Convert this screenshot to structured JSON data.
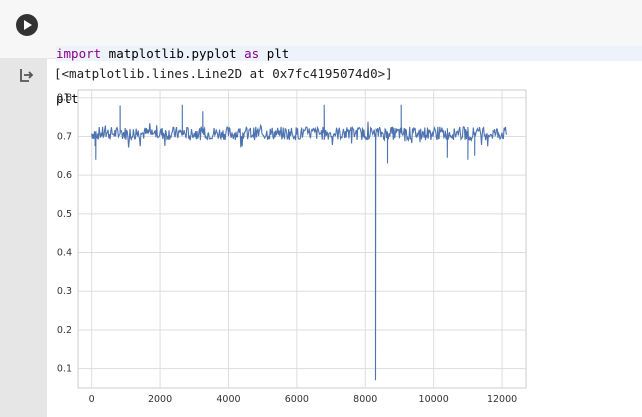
{
  "cell": {
    "code_lines": [
      {
        "kw1": "import",
        "mid": " matplotlib.pyplot ",
        "kw2": "as",
        "end": " plt"
      },
      {
        "text": "plt.plot(act)"
      }
    ],
    "output_text": "[<matplotlib.lines.Line2D at 0x7fc4195074d0>]"
  },
  "icons": {
    "run": "play-icon",
    "output": "output-arrow-icon"
  },
  "chart_data": {
    "type": "line",
    "title": "",
    "xlabel": "",
    "ylabel": "",
    "xlim": [
      -400,
      12700
    ],
    "ylim": [
      0.05,
      0.82
    ],
    "xticks": [
      0,
      2000,
      4000,
      6000,
      8000,
      10000,
      12000
    ],
    "yticks": [
      0.1,
      0.2,
      0.3,
      0.4,
      0.5,
      0.6,
      0.7,
      0.8
    ],
    "grid": true,
    "series": [
      {
        "color": "#4c72b0",
        "baseline": 0.708,
        "x_range": [
          0,
          12150
        ],
        "spikes": [
          {
            "x": 100,
            "y": 0.675
          },
          {
            "x": 120,
            "y": 0.64
          },
          {
            "x": 830,
            "y": 0.78
          },
          {
            "x": 2650,
            "y": 0.782
          },
          {
            "x": 3250,
            "y": 0.765
          },
          {
            "x": 6800,
            "y": 0.782
          },
          {
            "x": 8300,
            "y": 0.07
          },
          {
            "x": 8650,
            "y": 0.63
          },
          {
            "x": 9050,
            "y": 0.782
          },
          {
            "x": 10400,
            "y": 0.645
          },
          {
            "x": 11000,
            "y": 0.64
          },
          {
            "x": 11200,
            "y": 0.65
          }
        ]
      }
    ]
  }
}
